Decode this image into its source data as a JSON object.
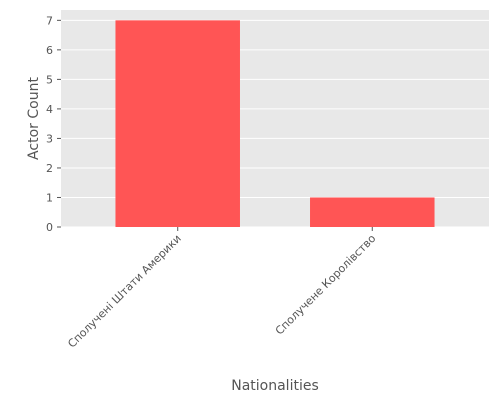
{
  "chart_data": {
    "type": "bar",
    "title": "",
    "xlabel": "Nationalities",
    "ylabel": "Actor Count",
    "categories": [
      "Сполучені Штати Америки",
      "Сполучене Королівство"
    ],
    "values": [
      7,
      1
    ],
    "ylim": [
      0,
      7.35
    ],
    "yticks": [
      0,
      1,
      2,
      3,
      4,
      5,
      6,
      7
    ],
    "grid": true,
    "legend": "none",
    "bar_color": "#ff5555",
    "background_color": "#e8e8e8"
  }
}
